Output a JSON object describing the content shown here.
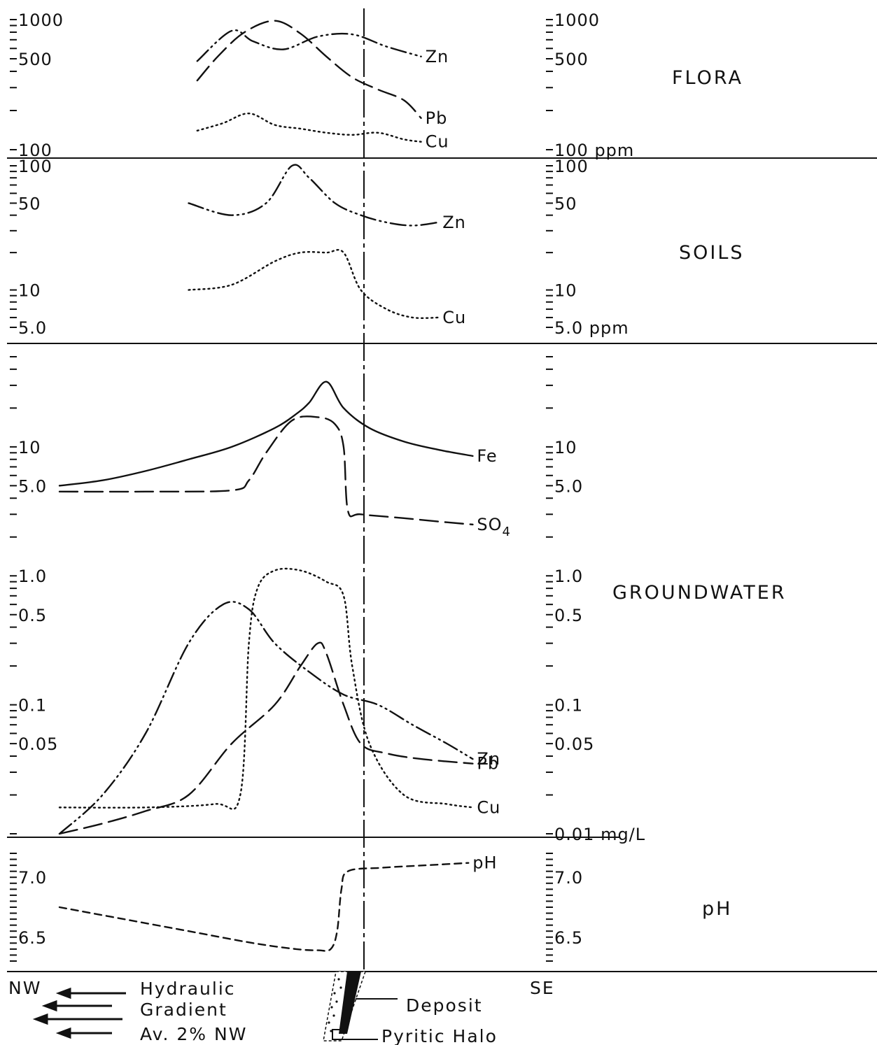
{
  "colors": {
    "ink": "#111111",
    "background": "#ffffff"
  },
  "chart_data": {
    "type": "line",
    "x_direction": {
      "left": "NW",
      "right": "SE"
    },
    "deposit_marker": {
      "style": "dashed vertical line"
    },
    "panels": [
      {
        "id": "flora",
        "label": "FLORA",
        "scale": "log",
        "ylim": [
          100,
          1000
        ],
        "y_tick_labels": {
          "left": [
            "1000",
            "500",
            "100"
          ],
          "right": [
            "1000",
            "500",
            "100 ppm"
          ]
        },
        "series": [
          {
            "name": "Zn",
            "dash": "dash-dot-dot",
            "x": [
              0.32,
              0.4,
              0.45,
              0.52,
              0.6,
              0.68,
              0.76,
              0.84
            ],
            "y": [
              480,
              820,
              680,
              590,
              740,
              770,
              620,
              520
            ]
          },
          {
            "name": "Pb",
            "dash": "long-dash",
            "x": [
              0.32,
              0.37,
              0.43,
              0.5,
              0.56,
              0.62,
              0.68,
              0.74,
              0.8,
              0.84
            ],
            "y": [
              340,
              530,
              800,
              980,
              780,
              520,
              360,
              290,
              240,
              175
            ]
          },
          {
            "name": "Cu",
            "dash": "dotted",
            "x": [
              0.32,
              0.38,
              0.44,
              0.5,
              0.56,
              0.62,
              0.68,
              0.74,
              0.8,
              0.84
            ],
            "y": [
              140,
              160,
              190,
              155,
              145,
              135,
              130,
              135,
              120,
              115
            ]
          }
        ]
      },
      {
        "id": "soils",
        "label": "SOILS",
        "scale": "log",
        "ylim": [
          5,
          100
        ],
        "y_tick_labels": {
          "left": [
            "100",
            "50",
            "10",
            "5.0"
          ],
          "right": [
            "100",
            "50",
            "10",
            "5.0 ppm"
          ]
        },
        "series": [
          {
            "name": "Zn",
            "dash": "dash-dot-dot",
            "x": [
              0.3,
              0.4,
              0.48,
              0.54,
              0.58,
              0.64,
              0.7,
              0.76,
              0.82,
              0.88
            ],
            "y": [
              50,
              40,
              50,
              100,
              80,
              50,
              40,
              35,
              33,
              35
            ]
          },
          {
            "name": "Cu",
            "dash": "dotted",
            "x": [
              0.3,
              0.4,
              0.5,
              0.56,
              0.62,
              0.66,
              0.7,
              0.76,
              0.82,
              0.88
            ],
            "y": [
              10,
              11,
              17,
              20,
              20,
              20,
              10,
              7,
              6,
              6
            ]
          }
        ]
      },
      {
        "id": "groundwater",
        "label": "GROUNDWATER",
        "scale": "log",
        "ylim": [
          0.01,
          50
        ],
        "y_tick_labels": {
          "left": [
            "10",
            "5.0",
            "1.0",
            "0.5",
            "0.1",
            "0.05"
          ],
          "right": [
            "10",
            "5.0",
            "1.0",
            "0.5",
            "0.1",
            "0.05",
            "0.01 mg/L"
          ]
        },
        "series": [
          {
            "name": "Fe",
            "dash": "solid",
            "x": [
              0.0,
              0.1,
              0.2,
              0.3,
              0.4,
              0.5,
              0.55,
              0.58,
              0.62,
              0.66,
              0.72,
              0.8,
              0.88,
              0.96
            ],
            "y": [
              5.0,
              5.5,
              6.5,
              8,
              10,
              14,
              18,
              22,
              32,
              20,
              14,
              11,
              9.5,
              8.5
            ]
          },
          {
            "name": "SO4",
            "dash": "long-dash",
            "x": [
              0.0,
              0.2,
              0.4,
              0.44,
              0.48,
              0.54,
              0.6,
              0.64,
              0.66,
              0.67,
              0.7,
              0.8,
              0.9,
              0.96
            ],
            "y": [
              4.5,
              4.5,
              4.6,
              5.5,
              9,
              16,
              17,
              15,
              10,
              3.2,
              3.0,
              2.8,
              2.6,
              2.5
            ]
          },
          {
            "name": "Zn",
            "dash": "dash-dot-dot",
            "x": [
              0.0,
              0.1,
              0.2,
              0.3,
              0.38,
              0.44,
              0.5,
              0.58,
              0.66,
              0.74,
              0.82,
              0.9,
              0.96
            ],
            "y": [
              0.01,
              0.02,
              0.06,
              0.3,
              0.6,
              0.55,
              0.3,
              0.18,
              0.12,
              0.1,
              0.07,
              0.05,
              0.038
            ]
          },
          {
            "name": "Pb",
            "dash": "long-dash",
            "x": [
              0.0,
              0.1,
              0.2,
              0.3,
              0.4,
              0.5,
              0.56,
              0.6,
              0.62,
              0.66,
              0.7,
              0.76,
              0.84,
              0.96
            ],
            "y": [
              0.01,
              0.012,
              0.015,
              0.02,
              0.05,
              0.1,
              0.2,
              0.3,
              0.25,
              0.1,
              0.05,
              0.042,
              0.038,
              0.035
            ]
          },
          {
            "name": "Cu",
            "dash": "dotted",
            "x": [
              0.0,
              0.2,
              0.36,
              0.42,
              0.44,
              0.46,
              0.5,
              0.56,
              0.62,
              0.66,
              0.68,
              0.72,
              0.8,
              0.9,
              0.96
            ],
            "y": [
              0.016,
              0.016,
              0.017,
              0.02,
              0.3,
              0.8,
              1.1,
              1.1,
              0.9,
              0.7,
              0.2,
              0.05,
              0.02,
              0.017,
              0.016
            ]
          }
        ]
      },
      {
        "id": "ph",
        "label": "pH",
        "scale": "linear",
        "ylim": [
          6.3,
          7.2
        ],
        "y_tick_labels": {
          "left": [
            "7.0",
            "6.5"
          ],
          "right": [
            "7.0",
            "6.5"
          ]
        },
        "series": [
          {
            "name": "pH",
            "dash": "short-dash",
            "x": [
              0.0,
              0.15,
              0.3,
              0.45,
              0.55,
              0.6,
              0.63,
              0.645,
              0.655,
              0.67,
              0.75,
              0.85,
              0.95
            ],
            "y": [
              6.75,
              6.65,
              6.55,
              6.45,
              6.4,
              6.39,
              6.4,
              6.55,
              6.9,
              7.05,
              7.08,
              7.1,
              7.12
            ]
          }
        ]
      }
    ]
  },
  "legend": {
    "left_direction": "NW",
    "right_direction": "SE",
    "hydraulic_gradient_lines": [
      "Hydraulic",
      "Gradient",
      "Av. 2% NW"
    ],
    "deposit_label": "Deposit",
    "halo_label": "Pyritic Halo"
  }
}
